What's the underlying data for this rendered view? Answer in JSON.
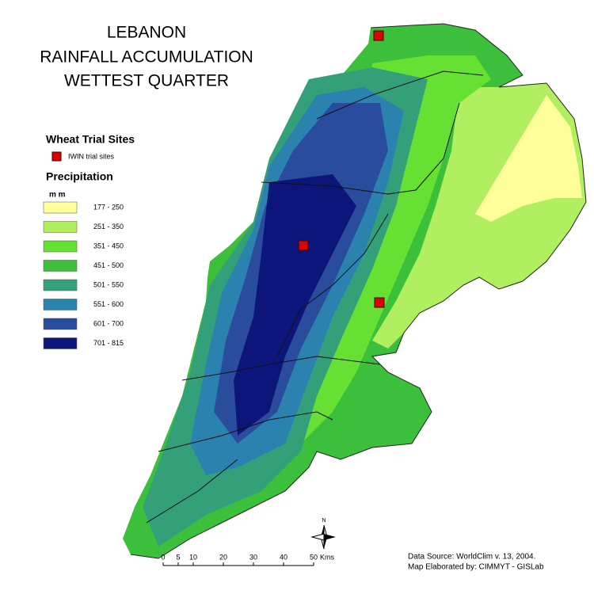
{
  "title": [
    "LEBANON",
    "RAINFALL  ACCUMULATION",
    "WETTEST QUARTER"
  ],
  "legend": {
    "sites_title": "Wheat Trial Sites",
    "site_label": "IWIN trial sites",
    "precip_title": "Precipitation",
    "unit": "m m",
    "classes": [
      {
        "label": "177 - 250",
        "color": "#ffff99"
      },
      {
        "label": "251 - 350",
        "color": "#b0f060"
      },
      {
        "label": "351 - 450",
        "color": "#66e033"
      },
      {
        "label": "451 - 500",
        "color": "#3cc03c"
      },
      {
        "label": "501 - 550",
        "color": "#33a07a"
      },
      {
        "label": "551 - 600",
        "color": "#2c82ae"
      },
      {
        "label": "601 - 700",
        "color": "#2a4c9c"
      },
      {
        "label": "701 - 815",
        "color": "#0c167a"
      }
    ]
  },
  "scale_bar": {
    "ticks": [
      0,
      5,
      10,
      20,
      30,
      40,
      50
    ],
    "unit": "Kms"
  },
  "north": "N",
  "credits": [
    "Data Source: WorldClim v. 13,  2004.",
    "Map Elaborated by: CIMMYT - GISLab"
  ]
}
